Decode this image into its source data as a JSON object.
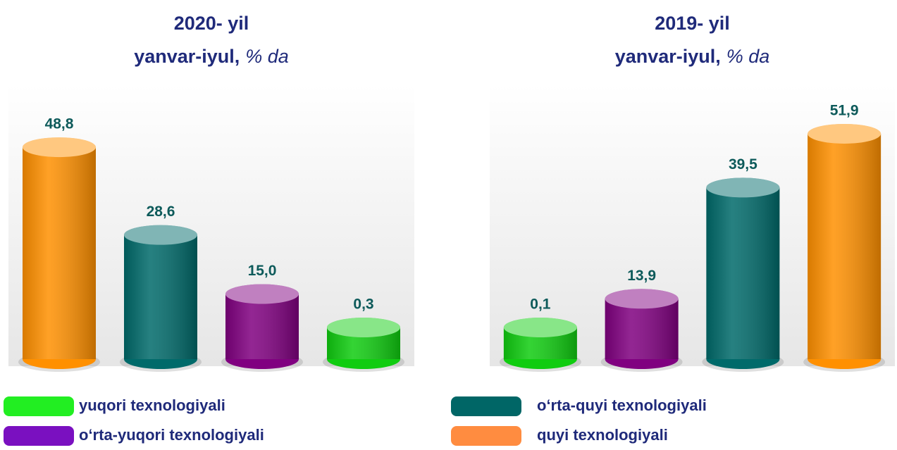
{
  "chart_data": [
    {
      "type": "bar",
      "title": "2020- yil",
      "subtitle": "yanvar-iyul,",
      "unit": "% da",
      "values": [
        48.8,
        28.6,
        15.0,
        0.3
      ],
      "value_labels": [
        "48,8",
        "28,6",
        "15,0",
        "0,3"
      ],
      "colors": [
        "#ff9000",
        "#006a6a",
        "#800080",
        "#10cc10"
      ],
      "ylim": [
        0,
        60
      ]
    },
    {
      "type": "bar",
      "title": "2019- yil",
      "subtitle": "yanvar-iyul,",
      "unit": "% da",
      "values": [
        0.1,
        13.9,
        39.5,
        51.9
      ],
      "value_labels": [
        "0,1",
        "13,9",
        "39,5",
        "51,9"
      ],
      "colors": [
        "#10cc10",
        "#800080",
        "#006a6a",
        "#ff9000"
      ],
      "ylim": [
        0,
        60
      ]
    }
  ],
  "legend": [
    {
      "name": "yuqori texnologiyali",
      "color": "#22ee22"
    },
    {
      "name": "o‘rta-yuqori texnologiyali",
      "color": "#7a10c0"
    },
    {
      "name": "o‘rta-quyi texnologiyali",
      "color": "#006666"
    },
    {
      "name": "quyi texnologiyali",
      "color": "#ff8c40"
    }
  ]
}
